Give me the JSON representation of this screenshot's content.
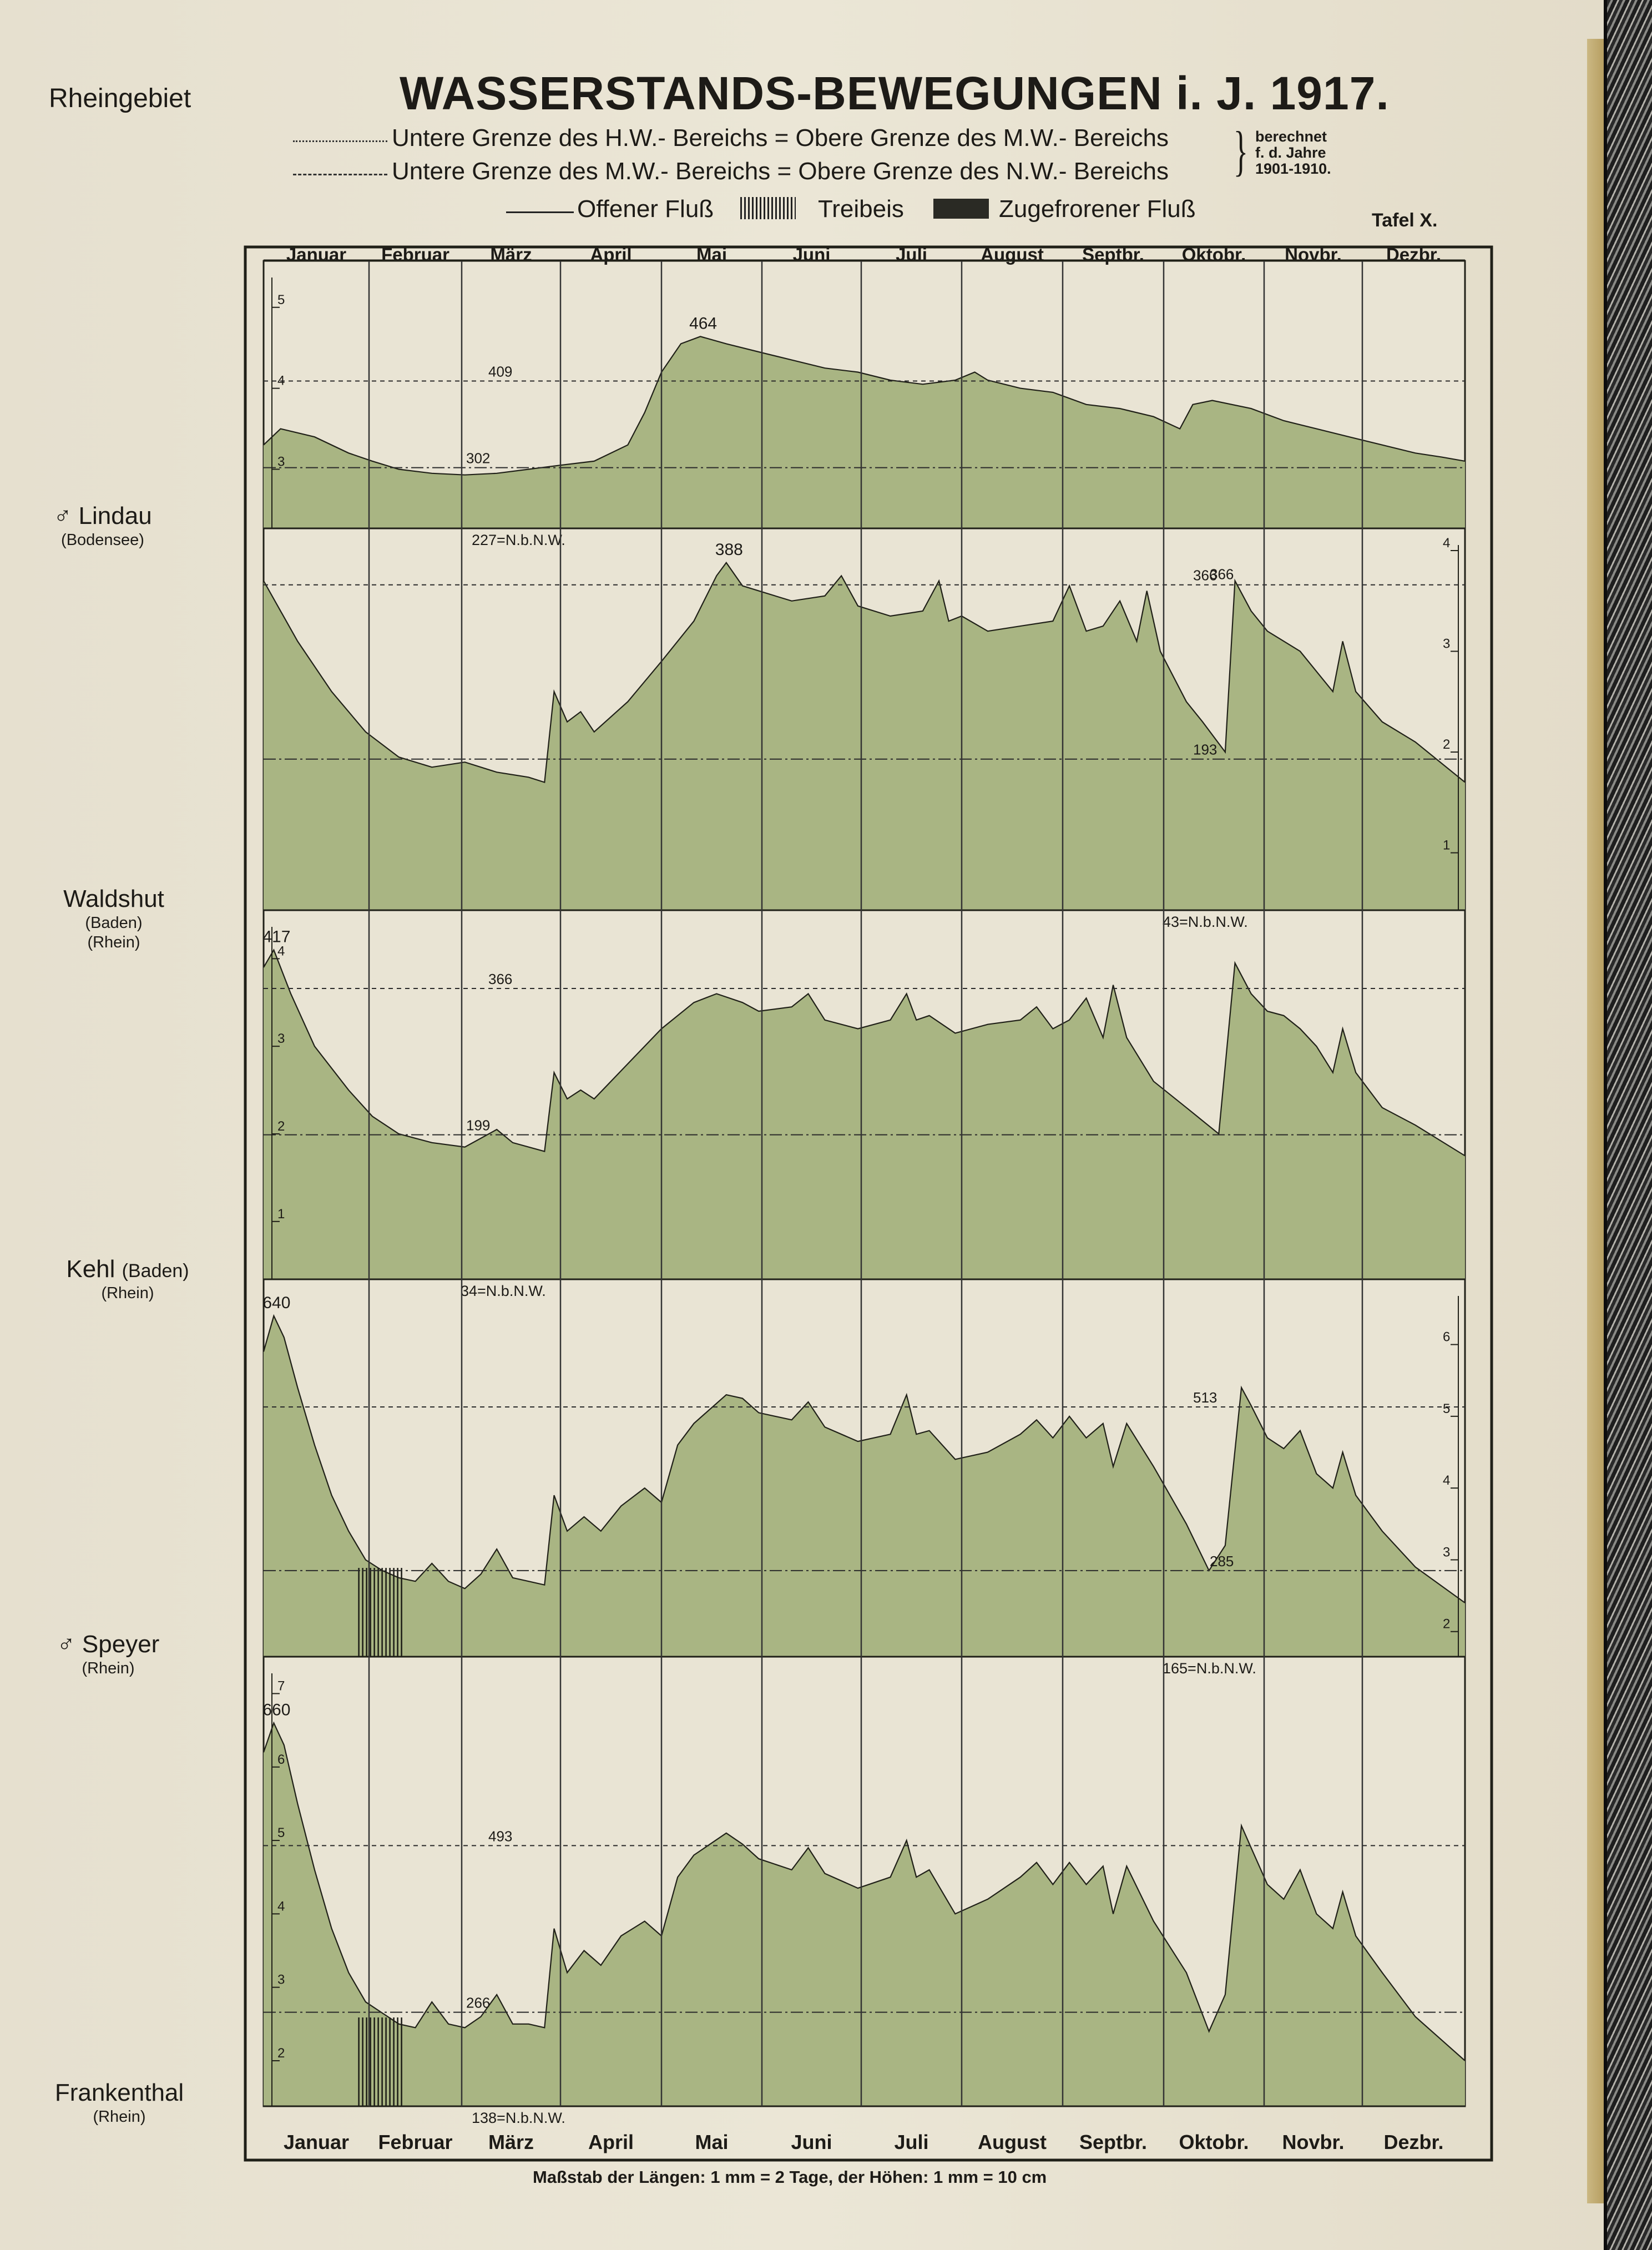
{
  "header": {
    "region": "Rheingebiet",
    "title": "WASSERSTANDS-BEWEGUNGEN i. J. 1917.",
    "tafel": "Tafel X."
  },
  "legend": {
    "hw_line": "Untere Grenze des H.W.- Bereichs = Obere Grenze des M.W.- Bereichs",
    "nw_line": "Untere Grenze des M.W.- Bereichs = Obere Grenze des N.W.- Bereichs",
    "calc_note": [
      "berechnet",
      "f. d. Jahre",
      "1901-1910."
    ],
    "offen": "Offener Fluß",
    "treibeis": "Treibeis",
    "zugefroren": "Zugefrorener Fluß"
  },
  "months_top": [
    "Januar",
    "Februar",
    "März",
    "April",
    "Mai",
    "Juni",
    "Juli",
    "August",
    "Septbr.",
    "Oktobr.",
    "Novbr.",
    "Dezbr."
  ],
  "months_bottom": [
    "Januar",
    "Februar",
    "März",
    "April",
    "Mai",
    "Juni",
    "Juli",
    "August",
    "Septbr.",
    "Oktobr.",
    "Novbr.",
    "Dezbr."
  ],
  "scale_note": "Maßstab der Längen: 1 mm = 2 Tage, der Höhen: 1 mm = 10 cm",
  "colors": {
    "fill": "#a9b583",
    "stroke": "#202018",
    "paper": "#e9e4d4",
    "grid": "#333"
  },
  "chart_data": [
    {
      "type": "area",
      "station": "Lindau",
      "station_sub": "(Bodensee)",
      "station_mark": "♂",
      "unit": "m",
      "ylim": [
        2.27,
        5.3
      ],
      "ticks": [
        "3",
        "4",
        "5"
      ],
      "tick_values": [
        3,
        4,
        5
      ],
      "tick_side": "left",
      "upper_line": {
        "value": 4.09,
        "label": "409"
      },
      "lower_line": {
        "value": 3.02,
        "label": "302"
      },
      "max_label": "464",
      "nnw_label": "227=N.b.N.W.",
      "treibeis_days": [],
      "x": [
        0,
        5,
        15,
        25,
        32,
        40,
        50,
        60,
        70,
        80,
        90,
        100,
        110,
        115,
        120,
        126,
        132,
        140,
        150,
        160,
        170,
        180,
        190,
        200,
        210,
        216,
        220,
        230,
        240,
        250,
        260,
        270,
        278,
        282,
        288,
        300,
        310,
        320,
        330,
        340,
        350,
        358,
        365
      ],
      "values": [
        3.3,
        3.5,
        3.4,
        3.2,
        3.1,
        3.0,
        2.95,
        2.93,
        2.95,
        3.0,
        3.05,
        3.1,
        3.3,
        3.7,
        4.2,
        4.55,
        4.64,
        4.55,
        4.45,
        4.35,
        4.25,
        4.2,
        4.1,
        4.05,
        4.1,
        4.2,
        4.1,
        4.0,
        3.95,
        3.8,
        3.75,
        3.65,
        3.5,
        3.8,
        3.85,
        3.75,
        3.6,
        3.5,
        3.4,
        3.3,
        3.2,
        3.15,
        3.1
      ]
    },
    {
      "type": "area",
      "station": "Waldshut",
      "station_sub": "(Baden)",
      "station_sub2": "(Rhein)",
      "unit": "m",
      "ylim": [
        0.43,
        4.0
      ],
      "ticks": [
        "1",
        "2",
        "3",
        "4"
      ],
      "tick_values": [
        1,
        2,
        3,
        4
      ],
      "tick_side": "right",
      "upper_line": {
        "value": 3.66,
        "label": "366"
      },
      "lower_line": {
        "value": 1.93,
        "label": "193"
      },
      "max_label": "388",
      "max2_label": "366",
      "nnw_label": "43=N.b.N.W.",
      "treibeis_days": [],
      "x": [
        0,
        5,
        10,
        20,
        30,
        40,
        50,
        60,
        70,
        80,
        85,
        88,
        92,
        96,
        100,
        110,
        120,
        130,
        137,
        140,
        145,
        150,
        160,
        170,
        175,
        180,
        190,
        200,
        205,
        208,
        212,
        220,
        230,
        240,
        245,
        250,
        255,
        260,
        265,
        268,
        272,
        280,
        285,
        292,
        295,
        300,
        305,
        315,
        320,
        325,
        328,
        332,
        340,
        350,
        365
      ],
      "values": [
        3.7,
        3.4,
        3.1,
        2.6,
        2.2,
        1.95,
        1.85,
        1.9,
        1.8,
        1.75,
        1.7,
        2.6,
        2.3,
        2.4,
        2.2,
        2.5,
        2.9,
        3.3,
        3.75,
        3.88,
        3.65,
        3.6,
        3.5,
        3.55,
        3.75,
        3.45,
        3.35,
        3.4,
        3.7,
        3.3,
        3.35,
        3.2,
        3.25,
        3.3,
        3.65,
        3.2,
        3.25,
        3.5,
        3.1,
        3.6,
        3.0,
        2.5,
        2.3,
        2.0,
        3.7,
        3.4,
        3.2,
        3.0,
        2.8,
        2.6,
        3.1,
        2.6,
        2.3,
        2.1,
        1.7
      ]
    },
    {
      "type": "area",
      "station": "Kehl",
      "station_sub": "(Baden)",
      "station_sub2": "(Rhein)",
      "unit": "m",
      "ylim": [
        0.34,
        4.3
      ],
      "ticks": [
        "1",
        "2",
        "3",
        "4"
      ],
      "tick_values": [
        1,
        2,
        3,
        4
      ],
      "tick_side": "left",
      "upper_line": {
        "value": 3.66,
        "label": "366"
      },
      "lower_line": {
        "value": 1.99,
        "label": "199"
      },
      "max_label": "417",
      "nnw_label": "34=N.b.N.W.",
      "treibeis_days": [],
      "x": [
        0,
        3,
        8,
        15,
        25,
        32,
        40,
        50,
        60,
        70,
        75,
        80,
        85,
        88,
        92,
        96,
        100,
        110,
        120,
        130,
        137,
        145,
        150,
        160,
        165,
        170,
        180,
        190,
        195,
        198,
        202,
        210,
        220,
        230,
        235,
        240,
        245,
        250,
        255,
        258,
        262,
        270,
        280,
        290,
        295,
        300,
        305,
        310,
        315,
        320,
        325,
        328,
        332,
        340,
        350,
        365
      ],
      "values": [
        3.9,
        4.1,
        3.6,
        3.0,
        2.5,
        2.2,
        2.0,
        1.9,
        1.85,
        2.05,
        1.9,
        1.85,
        1.8,
        2.7,
        2.4,
        2.5,
        2.4,
        2.8,
        3.2,
        3.5,
        3.6,
        3.5,
        3.4,
        3.45,
        3.6,
        3.3,
        3.2,
        3.3,
        3.6,
        3.3,
        3.35,
        3.15,
        3.25,
        3.3,
        3.45,
        3.2,
        3.3,
        3.55,
        3.1,
        3.7,
        3.1,
        2.6,
        2.3,
        2.0,
        3.95,
        3.6,
        3.4,
        3.35,
        3.2,
        3.0,
        2.7,
        3.2,
        2.7,
        2.3,
        2.1,
        1.75
      ]
    },
    {
      "type": "area",
      "station": "Speyer",
      "station_sub": "(Rhein)",
      "station_mark": "♂",
      "unit": "m",
      "ylim": [
        1.65,
        6.6
      ],
      "ticks": [
        "2",
        "3",
        "4",
        "5",
        "6"
      ],
      "tick_values": [
        2,
        3,
        4,
        5,
        6
      ],
      "tick_side": "right",
      "upper_line": {
        "value": 5.13,
        "label": "513"
      },
      "lower_line": {
        "value": 2.85,
        "label": "285"
      },
      "max_label": "640",
      "nnw_label": "165=N.b.N.W.",
      "treibeis_days": [
        28,
        42
      ],
      "x": [
        0,
        3,
        6,
        10,
        15,
        20,
        25,
        30,
        35,
        40,
        45,
        50,
        55,
        60,
        65,
        70,
        75,
        80,
        85,
        88,
        92,
        97,
        102,
        108,
        115,
        120,
        125,
        130,
        135,
        140,
        145,
        150,
        160,
        165,
        170,
        180,
        190,
        195,
        198,
        202,
        210,
        220,
        230,
        235,
        240,
        245,
        250,
        255,
        258,
        262,
        270,
        280,
        287,
        292,
        297,
        300,
        305,
        310,
        315,
        320,
        325,
        328,
        332,
        340,
        350,
        365
      ],
      "values": [
        5.9,
        6.4,
        6.1,
        5.4,
        4.6,
        3.9,
        3.4,
        3.0,
        2.85,
        2.75,
        2.7,
        2.95,
        2.7,
        2.6,
        2.8,
        3.15,
        2.75,
        2.7,
        2.65,
        3.9,
        3.4,
        3.6,
        3.4,
        3.75,
        4.0,
        3.8,
        4.6,
        4.9,
        5.1,
        5.3,
        5.25,
        5.05,
        4.95,
        5.2,
        4.85,
        4.65,
        4.75,
        5.3,
        4.75,
        4.8,
        4.4,
        4.5,
        4.75,
        4.95,
        4.7,
        5.0,
        4.7,
        4.9,
        4.3,
        4.9,
        4.3,
        3.5,
        2.85,
        3.2,
        5.4,
        5.15,
        4.7,
        4.55,
        4.8,
        4.2,
        4.0,
        4.5,
        3.9,
        3.4,
        2.9,
        2.4
      ]
    },
    {
      "type": "area",
      "station": "Frankenthal",
      "station_sub": "(Rhein)",
      "unit": "m",
      "ylim": [
        1.38,
        7.2
      ],
      "ticks": [
        "2",
        "3",
        "4",
        "5",
        "6",
        "7"
      ],
      "tick_values": [
        2,
        3,
        4,
        5,
        6,
        7
      ],
      "tick_side": "left",
      "upper_line": {
        "value": 4.93,
        "label": "493"
      },
      "lower_line": {
        "value": 2.66,
        "label": "266"
      },
      "max_label": "660",
      "nnw_label": "138=N.b.N.W.",
      "treibeis_days": [
        28,
        42
      ],
      "x": [
        0,
        3,
        6,
        10,
        15,
        20,
        25,
        30,
        35,
        40,
        45,
        50,
        55,
        60,
        65,
        70,
        75,
        80,
        85,
        88,
        92,
        97,
        102,
        108,
        115,
        120,
        125,
        130,
        135,
        140,
        145,
        150,
        160,
        165,
        170,
        180,
        190,
        195,
        198,
        202,
        210,
        220,
        230,
        235,
        240,
        245,
        250,
        255,
        258,
        262,
        270,
        280,
        287,
        292,
        297,
        300,
        305,
        310,
        315,
        320,
        325,
        328,
        332,
        340,
        350,
        365
      ],
      "values": [
        6.2,
        6.6,
        6.3,
        5.5,
        4.6,
        3.8,
        3.2,
        2.8,
        2.65,
        2.5,
        2.45,
        2.8,
        2.5,
        2.45,
        2.6,
        2.9,
        2.5,
        2.5,
        2.45,
        3.8,
        3.2,
        3.5,
        3.3,
        3.7,
        3.9,
        3.7,
        4.5,
        4.8,
        4.95,
        5.1,
        4.95,
        4.75,
        4.6,
        4.9,
        4.55,
        4.35,
        4.5,
        5.0,
        4.5,
        4.6,
        4.0,
        4.2,
        4.5,
        4.7,
        4.4,
        4.7,
        4.4,
        4.65,
        4.0,
        4.65,
        3.9,
        3.2,
        2.4,
        2.9,
        5.2,
        4.9,
        4.4,
        4.2,
        4.6,
        4.0,
        3.8,
        4.3,
        3.7,
        3.2,
        2.6,
        2.0
      ]
    }
  ]
}
